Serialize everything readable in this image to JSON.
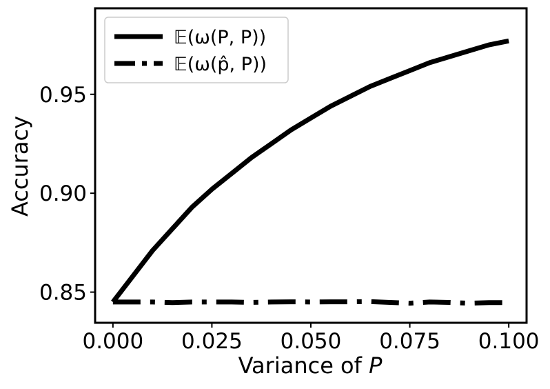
{
  "chart_data": {
    "type": "line",
    "xlabel": "Variance of",
    "xlabel_var": "P",
    "ylabel": "Accuracy",
    "xlim": [
      -0.0045,
      0.1045
    ],
    "ylim": [
      0.8345,
      0.9935
    ],
    "x_ticks": [
      0.0,
      0.025,
      0.05,
      0.075,
      0.1
    ],
    "x_tick_labels": [
      "0.000",
      "0.025",
      "0.050",
      "0.075",
      "0.100"
    ],
    "y_ticks": [
      0.85,
      0.9,
      0.95
    ],
    "y_tick_labels": [
      "0.85",
      "0.90",
      "0.95"
    ],
    "legend_position": "top-left",
    "grid": false,
    "series": [
      {
        "name": "𝔼(ω(P, P))",
        "style": "solid",
        "color": "#000000",
        "x": [
          0.0,
          0.005,
          0.01,
          0.015,
          0.02,
          0.025,
          0.03,
          0.035,
          0.04,
          0.045,
          0.05,
          0.055,
          0.06,
          0.065,
          0.07,
          0.075,
          0.08,
          0.085,
          0.09,
          0.095,
          0.1
        ],
        "y": [
          0.845,
          0.858,
          0.871,
          0.882,
          0.893,
          0.902,
          0.91,
          0.918,
          0.925,
          0.932,
          0.938,
          0.944,
          0.949,
          0.954,
          0.958,
          0.962,
          0.966,
          0.969,
          0.972,
          0.975,
          0.977
        ]
      },
      {
        "name": "𝔼(ω(p̂, P))",
        "style": "dashdot",
        "color": "#000000",
        "x": [
          0.0,
          0.005,
          0.01,
          0.015,
          0.02,
          0.025,
          0.03,
          0.035,
          0.04,
          0.045,
          0.05,
          0.055,
          0.06,
          0.065,
          0.07,
          0.075,
          0.08,
          0.085,
          0.09,
          0.095,
          0.1
        ],
        "y": [
          0.845,
          0.845,
          0.845,
          0.8447,
          0.845,
          0.845,
          0.845,
          0.8448,
          0.845,
          0.8451,
          0.845,
          0.8451,
          0.8451,
          0.8452,
          0.8448,
          0.8444,
          0.845,
          0.8448,
          0.8444,
          0.8447,
          0.8447
        ]
      }
    ]
  }
}
